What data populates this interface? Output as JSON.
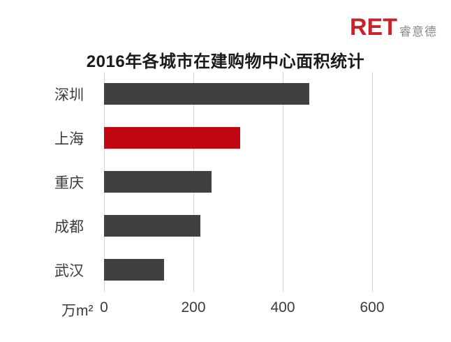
{
  "logo": {
    "text": "RET",
    "suffix": "睿意德",
    "text_color": "#cb2229",
    "suffix_color": "#8a8a8a"
  },
  "title": "2016年各城市在建购物中心面积统计",
  "chart_data": {
    "type": "bar",
    "orientation": "horizontal",
    "title": "2016年各城市在建购物中心面积统计",
    "categories": [
      "深圳",
      "上海",
      "重庆",
      "成都",
      "武汉"
    ],
    "values": [
      460,
      305,
      240,
      215,
      135
    ],
    "unit_label": "万m²",
    "x_ticks": [
      0,
      200,
      400,
      600
    ],
    "xlim": [
      0,
      690
    ],
    "grid": "vertical-only",
    "legend": "none",
    "bar_colors": [
      "#404040",
      "#c00712",
      "#404040",
      "#404040",
      "#404040"
    ],
    "highlight_index": 1,
    "highlight_color": "#c00712",
    "default_bar_color": "#404040",
    "gridline_color": "#d8d8d8",
    "label_color": "#3b3b3b",
    "title_color": "#1a1a1a"
  }
}
